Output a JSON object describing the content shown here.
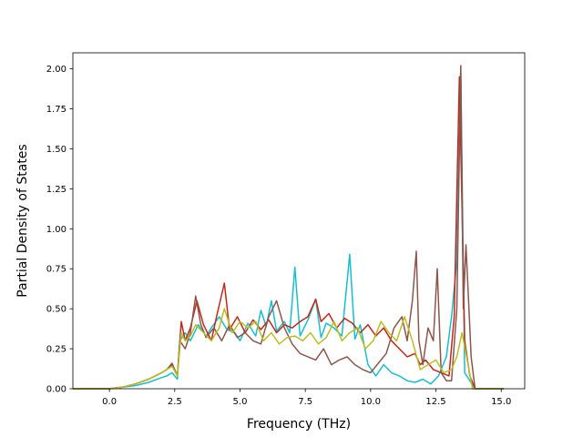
{
  "chart_data": {
    "type": "line",
    "title": "",
    "xlabel": "Frequency (THz)",
    "ylabel": "Partial Density of States",
    "xlim": [
      -1.4,
      15.9
    ],
    "ylim": [
      0,
      2.1
    ],
    "grid": false,
    "legend": "none",
    "x_ticks": [
      {
        "value": 0,
        "label": "0.0"
      },
      {
        "value": 2.5,
        "label": "2.5"
      },
      {
        "value": 5,
        "label": "5.0"
      },
      {
        "value": 7.5,
        "label": "7.5"
      },
      {
        "value": 10,
        "label": "10.0"
      },
      {
        "value": 12.5,
        "label": "12.5"
      },
      {
        "value": 15,
        "label": "15.0"
      }
    ],
    "y_ticks": [
      {
        "value": 0,
        "label": "0.00"
      },
      {
        "value": 0.25,
        "label": "0.25"
      },
      {
        "value": 0.5,
        "label": "0.50"
      },
      {
        "value": 0.75,
        "label": "0.75"
      },
      {
        "value": 1.0,
        "label": "1.00"
      },
      {
        "value": 1.25,
        "label": "1.25"
      },
      {
        "value": 1.5,
        "label": "1.50"
      },
      {
        "value": 1.75,
        "label": "1.75"
      },
      {
        "value": 2.0,
        "label": "2.00"
      }
    ],
    "series": [
      {
        "color": "#17becf",
        "x": [
          -1.4,
          0.0,
          0.5,
          1.0,
          1.5,
          2.0,
          2.2,
          2.4,
          2.6,
          2.7,
          2.9,
          3.1,
          3.4,
          3.7,
          3.9,
          4.2,
          4.5,
          4.8,
          5.0,
          5.3,
          5.6,
          5.8,
          6.0,
          6.2,
          6.4,
          6.7,
          6.9,
          7.1,
          7.3,
          7.6,
          7.9,
          8.1,
          8.3,
          8.6,
          8.9,
          9.2,
          9.4,
          9.6,
          9.9,
          10.2,
          10.5,
          10.8,
          11.1,
          11.4,
          11.7,
          12.0,
          12.3,
          12.6,
          12.9,
          13.1,
          13.3,
          13.45,
          13.6,
          13.8,
          14.0,
          15.1
        ],
        "y": [
          0.0,
          0.0,
          0.01,
          0.02,
          0.04,
          0.07,
          0.08,
          0.1,
          0.06,
          0.3,
          0.35,
          0.3,
          0.4,
          0.33,
          0.38,
          0.45,
          0.37,
          0.35,
          0.3,
          0.41,
          0.33,
          0.49,
          0.39,
          0.55,
          0.36,
          0.42,
          0.35,
          0.76,
          0.33,
          0.43,
          0.56,
          0.32,
          0.41,
          0.38,
          0.33,
          0.84,
          0.31,
          0.4,
          0.15,
          0.08,
          0.15,
          0.1,
          0.08,
          0.05,
          0.04,
          0.06,
          0.03,
          0.08,
          0.2,
          0.45,
          0.8,
          2.0,
          0.1,
          0.05,
          0.0,
          0.0
        ]
      },
      {
        "color": "#c0281e",
        "x": [
          -1.4,
          0.0,
          0.5,
          1.0,
          1.5,
          2.0,
          2.2,
          2.4,
          2.6,
          2.75,
          2.9,
          3.1,
          3.35,
          3.6,
          3.9,
          4.1,
          4.4,
          4.6,
          4.9,
          5.2,
          5.5,
          5.8,
          6.1,
          6.4,
          6.7,
          7.0,
          7.3,
          7.6,
          7.9,
          8.1,
          8.4,
          8.7,
          9.0,
          9.3,
          9.6,
          9.9,
          10.2,
          10.5,
          10.8,
          11.1,
          11.4,
          11.7,
          11.9,
          12.1,
          12.4,
          12.7,
          13.0,
          13.2,
          13.4,
          13.6,
          13.8,
          14.0,
          15.1
        ],
        "y": [
          0.0,
          0.0,
          0.01,
          0.03,
          0.06,
          0.1,
          0.12,
          0.15,
          0.08,
          0.42,
          0.3,
          0.38,
          0.55,
          0.4,
          0.3,
          0.45,
          0.66,
          0.37,
          0.45,
          0.35,
          0.43,
          0.37,
          0.43,
          0.35,
          0.4,
          0.38,
          0.42,
          0.45,
          0.56,
          0.42,
          0.47,
          0.38,
          0.44,
          0.41,
          0.35,
          0.4,
          0.33,
          0.38,
          0.3,
          0.25,
          0.2,
          0.22,
          0.15,
          0.18,
          0.12,
          0.1,
          0.08,
          0.45,
          1.95,
          0.3,
          0.08,
          0.0,
          0.0
        ]
      },
      {
        "color": "#8c564b",
        "x": [
          -1.4,
          0.0,
          0.5,
          1.0,
          1.5,
          2.0,
          2.2,
          2.4,
          2.6,
          2.7,
          2.9,
          3.1,
          3.3,
          3.5,
          3.7,
          4.0,
          4.3,
          4.6,
          4.9,
          5.2,
          5.5,
          5.8,
          6.1,
          6.4,
          6.7,
          7.0,
          7.3,
          7.6,
          7.9,
          8.2,
          8.5,
          8.8,
          9.1,
          9.4,
          9.7,
          10.0,
          10.3,
          10.6,
          10.9,
          11.2,
          11.4,
          11.6,
          11.75,
          11.85,
          12.0,
          12.2,
          12.4,
          12.55,
          12.7,
          12.9,
          13.1,
          13.3,
          13.45,
          13.55,
          13.65,
          13.75,
          13.85,
          14.0,
          15.1
        ],
        "y": [
          0.0,
          0.0,
          0.01,
          0.03,
          0.06,
          0.1,
          0.12,
          0.16,
          0.08,
          0.3,
          0.25,
          0.35,
          0.58,
          0.4,
          0.32,
          0.38,
          0.3,
          0.4,
          0.32,
          0.35,
          0.3,
          0.28,
          0.45,
          0.55,
          0.38,
          0.28,
          0.22,
          0.2,
          0.18,
          0.25,
          0.15,
          0.18,
          0.2,
          0.15,
          0.12,
          0.1,
          0.16,
          0.22,
          0.38,
          0.45,
          0.3,
          0.55,
          0.86,
          0.3,
          0.15,
          0.38,
          0.3,
          0.75,
          0.1,
          0.05,
          0.05,
          0.5,
          2.02,
          0.5,
          0.9,
          0.55,
          0.2,
          0.0,
          0.0
        ]
      },
      {
        "color": "#bcbd22",
        "x": [
          -1.4,
          0.0,
          0.5,
          1.0,
          1.5,
          2.0,
          2.2,
          2.4,
          2.6,
          2.75,
          2.9,
          3.1,
          3.3,
          3.6,
          3.9,
          4.2,
          4.4,
          4.7,
          5.0,
          5.3,
          5.6,
          5.9,
          6.2,
          6.5,
          6.8,
          7.1,
          7.4,
          7.7,
          8.0,
          8.3,
          8.6,
          8.9,
          9.2,
          9.5,
          9.8,
          10.1,
          10.4,
          10.7,
          11.0,
          11.3,
          11.6,
          11.9,
          12.2,
          12.5,
          12.8,
          13.1,
          13.3,
          13.5,
          13.7,
          13.9,
          15.1
        ],
        "y": [
          0.0,
          0.0,
          0.01,
          0.03,
          0.06,
          0.1,
          0.12,
          0.14,
          0.08,
          0.35,
          0.3,
          0.33,
          0.4,
          0.35,
          0.3,
          0.38,
          0.5,
          0.35,
          0.42,
          0.38,
          0.42,
          0.3,
          0.35,
          0.28,
          0.32,
          0.33,
          0.3,
          0.35,
          0.28,
          0.32,
          0.42,
          0.3,
          0.35,
          0.38,
          0.25,
          0.3,
          0.42,
          0.35,
          0.3,
          0.45,
          0.3,
          0.12,
          0.15,
          0.18,
          0.1,
          0.12,
          0.2,
          0.35,
          0.18,
          0.0,
          0.0
        ]
      }
    ]
  }
}
